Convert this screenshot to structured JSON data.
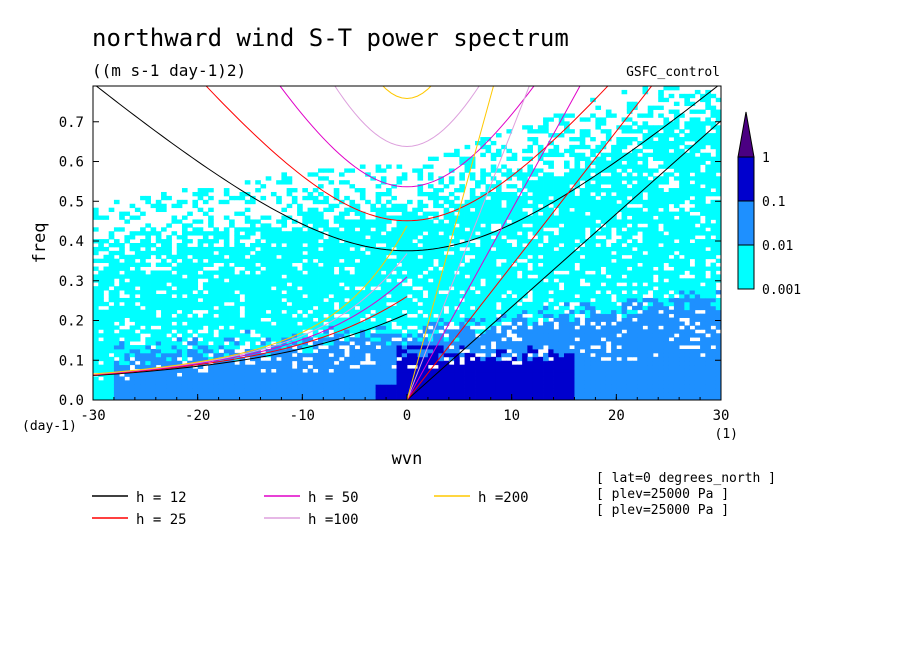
{
  "chart_data": {
    "type": "heatmap",
    "title": "northward wind S-T power spectrum",
    "subtitle": "((m s-1 day-1)2)",
    "run_label": "GSFC_control",
    "xlabel": "wvn",
    "ylabel": "freq",
    "x_unit": "(1)",
    "y_unit": "(day-1)",
    "xlim": [
      -30,
      30
    ],
    "ylim": [
      0,
      0.79
    ],
    "x_ticks": [
      "-30",
      "-20",
      "-10",
      "0",
      "10",
      "20",
      "30"
    ],
    "y_ticks": [
      "0.0",
      "0.1",
      "0.2",
      "0.3",
      "0.4",
      "0.5",
      "0.6",
      "0.7"
    ],
    "colorbar": {
      "levels": [
        "0.001",
        "0.01",
        "0.1",
        "1"
      ],
      "colors": [
        "#00ffff",
        "#1e90ff",
        "#0000cd",
        "#4b0082"
      ]
    },
    "dispersion_legend": [
      {
        "label": "h = 12",
        "color": "#000000"
      },
      {
        "label": "h = 25",
        "color": "#ff0000"
      },
      {
        "label": "h = 50",
        "color": "#e000c8"
      },
      {
        "label": "h =100",
        "color": "#dda0dd"
      },
      {
        "label": "h =200",
        "color": "#ffc800"
      }
    ],
    "info_lines": [
      "[ lat=0 degrees_north ]",
      "[ plev=25000 Pa ]",
      "[ plev=25000 Pa ]"
    ],
    "equivalent_depths": [
      12,
      25,
      50,
      100,
      200
    ]
  }
}
